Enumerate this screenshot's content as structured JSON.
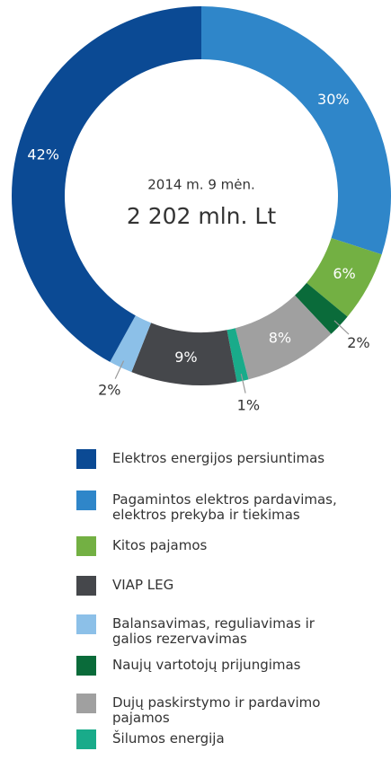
{
  "chart_data": {
    "type": "donut",
    "title": "2014 m. 9 mėn.",
    "subtitle": "2 202 mln. Lt",
    "categories": [
      "Elektros energijos persiuntimas",
      "Pagamintos elektros pardavimas, elektros prekyba ir tiekimas",
      "Kitos pajamos",
      "VIAP LEG",
      "Balansavimas, reguliavimas ir galios rezervavimas",
      "Naujų vartotojų prijungimas",
      "Dujų paskirstymo ir pardavimo pajamos",
      "Šilumos energija"
    ],
    "values": [
      42,
      30,
      6,
      9,
      2,
      2,
      8,
      1
    ],
    "value_labels": [
      "42%",
      "30%",
      "6%",
      "9%",
      "2%",
      "2%",
      "8%",
      "1%"
    ],
    "colors": [
      "#0b4a94",
      "#2f86c9",
      "#73b043",
      "#45474b",
      "#8cc0e8",
      "#0a6b3a",
      "#a0a0a0",
      "#19ab8a"
    ]
  }
}
